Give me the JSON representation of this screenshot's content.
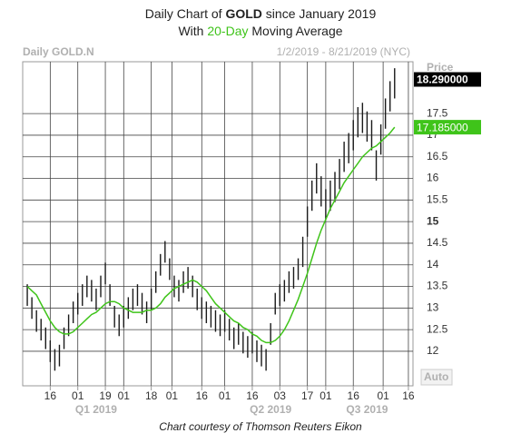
{
  "chart_data": {
    "type": "ohlc",
    "title_parts": [
      "Daily Chart of ",
      "GOLD",
      " since January 2019"
    ],
    "subtitle_parts": [
      "With ",
      "20-Day",
      " Moving Average"
    ],
    "header_left": "Daily GOLD.N",
    "date_range": "1/2/2019 - 8/21/2019 (NYC)",
    "axis_label": "Price",
    "auto_label": "Auto",
    "footer": "Chart courtesy of Thomson Reuters Eikon",
    "bar_color": "#1a1a1a",
    "grid": true,
    "xlim": [
      -1,
      84
    ],
    "xticks": [
      {
        "value": 5,
        "label": "16"
      },
      {
        "value": 11,
        "label": "01"
      },
      {
        "value": 17,
        "label": "19"
      },
      {
        "value": 21,
        "label": "01"
      },
      {
        "value": 27,
        "label": "18"
      },
      {
        "value": 31.5,
        "label": "01"
      },
      {
        "value": 38,
        "label": "16"
      },
      {
        "value": 43,
        "label": "01"
      },
      {
        "value": 49,
        "label": "16"
      },
      {
        "value": 55,
        "label": "03"
      },
      {
        "value": 61,
        "label": "17"
      },
      {
        "value": 65,
        "label": "01"
      },
      {
        "value": 71,
        "label": "16"
      },
      {
        "value": 77.5,
        "label": "01"
      },
      {
        "value": 83,
        "label": "16"
      }
    ],
    "quarters": [
      {
        "value": 15,
        "label": "Q1 2019"
      },
      {
        "value": 53,
        "label": "Q2 2019"
      },
      {
        "value": 74,
        "label": "Q3 2019"
      }
    ],
    "ylim": [
      11.2,
      18.7
    ],
    "yticks": [
      12,
      12.5,
      13,
      13.5,
      14,
      14.5,
      15,
      15.5,
      16,
      16.5,
      17,
      17.5
    ],
    "emphasized_ytick": 15,
    "low": [
      13.05,
      12.75,
      12.45,
      12.25,
      12.05,
      11.75,
      11.55,
      11.65,
      12.05,
      12.35,
      12.65,
      12.85,
      13.05,
      13.25,
      13.15,
      12.95,
      13.25,
      13.55,
      13.05,
      12.55,
      12.35,
      12.55,
      12.75,
      12.95,
      13.05,
      12.85,
      12.65,
      12.95,
      13.35,
      13.75,
      14.05,
      13.65,
      13.25,
      13.15,
      13.35,
      13.45,
      13.25,
      12.95,
      12.75,
      12.65,
      12.55,
      12.45,
      12.35,
      12.45,
      12.25,
      12.05,
      12.15,
      11.95,
      11.85,
      11.95,
      11.75,
      11.65,
      11.55,
      12.15,
      12.85,
      13.05,
      13.15,
      13.35,
      13.45,
      13.65,
      13.95,
      14.65,
      15.25,
      15.65,
      15.35,
      15.05,
      15.25,
      15.45,
      15.75,
      16.15,
      16.35,
      16.65,
      16.95,
      17.05,
      16.85,
      16.65,
      15.95,
      16.55,
      17.15,
      17.55,
      17.85
    ],
    "high": [
      13.55,
      13.25,
      12.95,
      12.75,
      12.55,
      12.25,
      12.05,
      12.15,
      12.55,
      12.85,
      13.15,
      13.35,
      13.55,
      13.75,
      13.65,
      13.45,
      13.75,
      14.05,
      13.55,
      13.05,
      12.85,
      13.05,
      13.25,
      13.45,
      13.55,
      13.35,
      13.15,
      13.45,
      13.85,
      14.25,
      14.55,
      14.15,
      13.75,
      13.65,
      13.85,
      13.95,
      13.75,
      13.45,
      13.25,
      13.15,
      13.05,
      12.95,
      12.85,
      12.95,
      12.75,
      12.55,
      12.65,
      12.45,
      12.35,
      12.45,
      12.25,
      12.15,
      12.05,
      12.65,
      13.35,
      13.55,
      13.65,
      13.85,
      13.95,
      14.15,
      14.65,
      15.35,
      15.95,
      16.35,
      16.05,
      15.75,
      15.95,
      16.15,
      16.45,
      16.85,
      17.05,
      17.35,
      17.65,
      17.75,
      17.55,
      17.35,
      16.65,
      17.25,
      17.85,
      18.25,
      18.55
    ],
    "ma": {
      "color": "#3fc41a",
      "values": [
        13.5,
        13.4,
        13.3,
        13.1,
        12.9,
        12.7,
        12.55,
        12.45,
        12.4,
        12.4,
        12.45,
        12.55,
        12.65,
        12.75,
        12.85,
        12.9,
        13.0,
        13.1,
        13.15,
        13.15,
        13.1,
        13.0,
        12.95,
        12.9,
        12.9,
        12.9,
        12.95,
        12.95,
        13.0,
        13.1,
        13.25,
        13.35,
        13.45,
        13.5,
        13.55,
        13.6,
        13.65,
        13.6,
        13.5,
        13.4,
        13.25,
        13.1,
        13.0,
        12.9,
        12.8,
        12.7,
        12.65,
        12.55,
        12.5,
        12.4,
        12.35,
        12.25,
        12.2,
        12.2,
        12.25,
        12.35,
        12.5,
        12.7,
        12.95,
        13.2,
        13.5,
        13.8,
        14.15,
        14.5,
        14.8,
        15.05,
        15.3,
        15.5,
        15.7,
        15.9,
        16.05,
        16.2,
        16.35,
        16.5,
        16.6,
        16.7,
        16.75,
        16.85,
        16.95,
        17.05,
        17.185
      ]
    },
    "price_marker": {
      "value": 18.29,
      "label": "18.290000",
      "color": "#000000"
    },
    "ma_marker": {
      "value": 17.185,
      "label": "17.185000",
      "color": "#3fc41a"
    }
  }
}
